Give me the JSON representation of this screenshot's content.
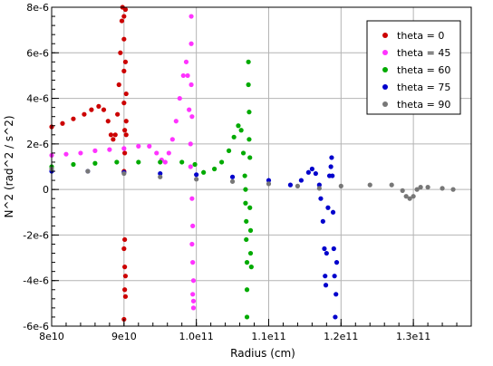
{
  "chart_data": {
    "type": "scatter",
    "title": "",
    "xlabel": "Radius (cm)",
    "ylabel": "N^2 (rad^2 / s^2)",
    "xlim": [
      80000000000.0,
      138000000000.0
    ],
    "ylim": [
      -6e-06,
      8e-06
    ],
    "grid": true,
    "legend_position": "top-right",
    "x_ticks": [
      {
        "value": 80000000000.0,
        "label": "8e10"
      },
      {
        "value": 90000000000.0,
        "label": "9e10"
      },
      {
        "value": 100000000000.0,
        "label": "1.0e11"
      },
      {
        "value": 110000000000.0,
        "label": "1.1e11"
      },
      {
        "value": 120000000000.0,
        "label": "1.2e11"
      },
      {
        "value": 130000000000.0,
        "label": "1.3e11"
      }
    ],
    "y_ticks": [
      {
        "value": -6e-06,
        "label": "-6e-6"
      },
      {
        "value": -4e-06,
        "label": "-4e-6"
      },
      {
        "value": -2e-06,
        "label": "-2e-6"
      },
      {
        "value": 0,
        "label": "0"
      },
      {
        "value": 2e-06,
        "label": "2e-6"
      },
      {
        "value": 4e-06,
        "label": "4e-6"
      },
      {
        "value": 6e-06,
        "label": "6e-6"
      },
      {
        "value": 8e-06,
        "label": "8e-6"
      }
    ],
    "series": [
      {
        "name": "theta = 0",
        "color": "#cc0000",
        "points": [
          [
            80000000000.0,
            2.75e-06
          ],
          [
            81500000000.0,
            2.9e-06
          ],
          [
            83000000000.0,
            3.1e-06
          ],
          [
            84500000000.0,
            3.3e-06
          ],
          [
            85500000000.0,
            3.5e-06
          ],
          [
            86500000000.0,
            3.65e-06
          ],
          [
            87200000000.0,
            3.5e-06
          ],
          [
            87800000000.0,
            3e-06
          ],
          [
            88200000000.0,
            2.4e-06
          ],
          [
            88500000000.0,
            2.2e-06
          ],
          [
            88800000000.0,
            2.4e-06
          ],
          [
            89100000000.0,
            3.3e-06
          ],
          [
            89300000000.0,
            4.6e-06
          ],
          [
            89500000000.0,
            6e-06
          ],
          [
            89700000000.0,
            7.4e-06
          ],
          [
            89800000000.0,
            8e-06
          ],
          [
            90000000000.0,
            7.6e-06
          ],
          [
            90000000000.0,
            6.6e-06
          ],
          [
            90000000000.0,
            5.2e-06
          ],
          [
            90000000000.0,
            3.8e-06
          ],
          [
            90100000000.0,
            2.6e-06
          ],
          [
            90100000000.0,
            1.6e-06
          ],
          [
            90000000000.0,
            8e-07
          ],
          [
            90100000000.0,
            -2.2e-06
          ],
          [
            90000000000.0,
            -2.6e-06
          ],
          [
            90100000000.0,
            -3.4e-06
          ],
          [
            90200000000.0,
            -3.8e-06
          ],
          [
            90100000000.0,
            -4.4e-06
          ],
          [
            90200000000.0,
            -4.7e-06
          ],
          [
            90000000000.0,
            -5.7e-06
          ],
          [
            90200000000.0,
            7.9e-06
          ],
          [
            90200000000.0,
            5.6e-06
          ],
          [
            90300000000.0,
            4.2e-06
          ],
          [
            90300000000.0,
            3e-06
          ],
          [
            90300000000.0,
            2.4e-06
          ]
        ]
      },
      {
        "name": "theta = 45",
        "color": "#ff33ff",
        "points": [
          [
            80000000000.0,
            1.5e-06
          ],
          [
            82000000000.0,
            1.55e-06
          ],
          [
            84000000000.0,
            1.6e-06
          ],
          [
            86000000000.0,
            1.7e-06
          ],
          [
            88000000000.0,
            1.75e-06
          ],
          [
            90000000000.0,
            1.8e-06
          ],
          [
            92000000000.0,
            1.9e-06
          ],
          [
            93500000000.0,
            1.9e-06
          ],
          [
            94500000000.0,
            1.6e-06
          ],
          [
            95200000000.0,
            1.3e-06
          ],
          [
            95700000000.0,
            1.2e-06
          ],
          [
            96200000000.0,
            1.6e-06
          ],
          [
            96700000000.0,
            2.2e-06
          ],
          [
            97200000000.0,
            3e-06
          ],
          [
            97700000000.0,
            4e-06
          ],
          [
            98200000000.0,
            5e-06
          ],
          [
            98600000000.0,
            5.6e-06
          ],
          [
            98800000000.0,
            5e-06
          ],
          [
            99000000000.0,
            3.5e-06
          ],
          [
            99200000000.0,
            2e-06
          ],
          [
            99200000000.0,
            1e-06
          ],
          [
            99300000000.0,
            7.6e-06
          ],
          [
            99300000000.0,
            6.4e-06
          ],
          [
            99300000000.0,
            4.6e-06
          ],
          [
            99400000000.0,
            3.2e-06
          ],
          [
            99400000000.0,
            -4e-07
          ],
          [
            99500000000.0,
            -1.6e-06
          ],
          [
            99400000000.0,
            -2.4e-06
          ],
          [
            99500000000.0,
            -3.2e-06
          ],
          [
            99600000000.0,
            -4e-06
          ],
          [
            99500000000.0,
            -4.6e-06
          ],
          [
            99600000000.0,
            -5.2e-06
          ],
          [
            99600000000.0,
            -4.9e-06
          ]
        ]
      },
      {
        "name": "theta = 60",
        "color": "#00aa00",
        "points": [
          [
            80000000000.0,
            1e-06
          ],
          [
            83000000000.0,
            1.1e-06
          ],
          [
            86000000000.0,
            1.15e-06
          ],
          [
            89000000000.0,
            1.2e-06
          ],
          [
            92000000000.0,
            1.2e-06
          ],
          [
            95000000000.0,
            1.2e-06
          ],
          [
            98000000000.0,
            1.2e-06
          ],
          [
            99800000000.0,
            1.1e-06
          ],
          [
            101000000000.0,
            7.5e-07
          ],
          [
            102500000000.0,
            9e-07
          ],
          [
            103500000000.0,
            1.2e-06
          ],
          [
            104500000000.0,
            1.7e-06
          ],
          [
            105200000000.0,
            2.3e-06
          ],
          [
            105800000000.0,
            2.8e-06
          ],
          [
            106200000000.0,
            2.6e-06
          ],
          [
            106500000000.0,
            1.6e-06
          ],
          [
            106700000000.0,
            6e-07
          ],
          [
            106800000000.0,
            0.0
          ],
          [
            106800000000.0,
            -6e-07
          ],
          [
            106900000000.0,
            -1.4e-06
          ],
          [
            106900000000.0,
            -2.2e-06
          ],
          [
            107000000000.0,
            -3.2e-06
          ],
          [
            107000000000.0,
            -4.4e-06
          ],
          [
            107000000000.0,
            -5.6e-06
          ],
          [
            107200000000.0,
            5.6e-06
          ],
          [
            107200000000.0,
            4.6e-06
          ],
          [
            107300000000.0,
            3.4e-06
          ],
          [
            107300000000.0,
            2.2e-06
          ],
          [
            107400000000.0,
            1.4e-06
          ],
          [
            107400000000.0,
            -8e-07
          ],
          [
            107500000000.0,
            -1.8e-06
          ],
          [
            107500000000.0,
            -2.8e-06
          ],
          [
            107600000000.0,
            -3.4e-06
          ]
        ]
      },
      {
        "name": "theta = 75",
        "color": "#0000cc",
        "points": [
          [
            80000000000.0,
            8e-07
          ],
          [
            85000000000.0,
            8e-07
          ],
          [
            90000000000.0,
            7.5e-07
          ],
          [
            95000000000.0,
            7e-07
          ],
          [
            100000000000.0,
            6.5e-07
          ],
          [
            105000000000.0,
            5.5e-07
          ],
          [
            110000000000.0,
            4e-07
          ],
          [
            113000000000.0,
            2e-07
          ],
          [
            114500000000.0,
            4e-07
          ],
          [
            115500000000.0,
            7.5e-07
          ],
          [
            116000000000.0,
            9e-07
          ],
          [
            116500000000.0,
            7e-07
          ],
          [
            117000000000.0,
            2e-07
          ],
          [
            117200000000.0,
            -4e-07
          ],
          [
            117500000000.0,
            -1.4e-06
          ],
          [
            117700000000.0,
            -2.6e-06
          ],
          [
            117800000000.0,
            -3.8e-06
          ],
          [
            117900000000.0,
            -4.2e-06
          ],
          [
            118000000000.0,
            -2.8e-06
          ],
          [
            118200000000.0,
            -8e-07
          ],
          [
            118400000000.0,
            6e-07
          ],
          [
            118600000000.0,
            1e-06
          ],
          [
            118700000000.0,
            1.4e-06
          ],
          [
            118800000000.0,
            6e-07
          ],
          [
            118900000000.0,
            -1e-06
          ],
          [
            119000000000.0,
            -2.6e-06
          ],
          [
            119100000000.0,
            -3.8e-06
          ],
          [
            119200000000.0,
            -5.6e-06
          ],
          [
            119300000000.0,
            -4.6e-06
          ],
          [
            119400000000.0,
            -3.2e-06
          ]
        ]
      },
      {
        "name": "theta = 90",
        "color": "#777777",
        "points": [
          [
            80000000000.0,
            9e-07
          ],
          [
            85000000000.0,
            8e-07
          ],
          [
            90000000000.0,
            7e-07
          ],
          [
            95000000000.0,
            5.5e-07
          ],
          [
            100000000000.0,
            4.5e-07
          ],
          [
            105000000000.0,
            3.5e-07
          ],
          [
            110000000000.0,
            2.5e-07
          ],
          [
            114000000000.0,
            1.5e-07
          ],
          [
            117000000000.0,
            5e-08
          ],
          [
            120000000000.0,
            1.5e-07
          ],
          [
            124000000000.0,
            2e-07
          ],
          [
            127000000000.0,
            2e-07
          ],
          [
            128500000000.0,
            -5e-08
          ],
          [
            129000000000.0,
            -3e-07
          ],
          [
            129500000000.0,
            -4e-07
          ],
          [
            130000000000.0,
            -3e-07
          ],
          [
            130500000000.0,
            0.0
          ],
          [
            131000000000.0,
            1e-07
          ],
          [
            132000000000.0,
            1e-07
          ],
          [
            134000000000.0,
            5e-08
          ],
          [
            135500000000.0,
            0.0
          ]
        ]
      }
    ]
  }
}
